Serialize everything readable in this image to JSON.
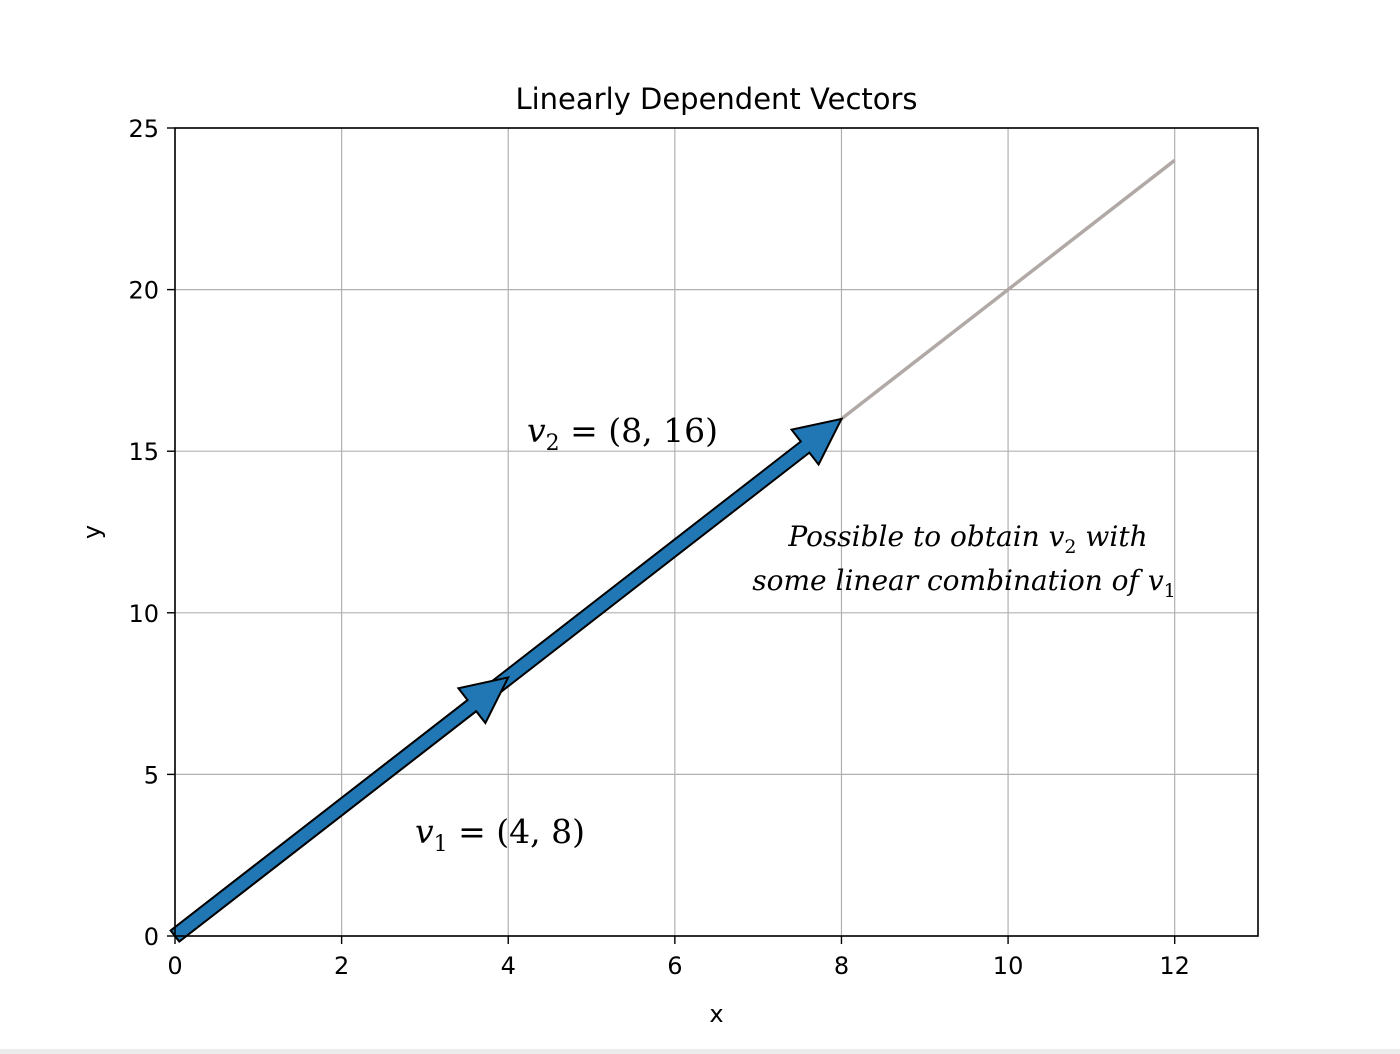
{
  "chart_data": {
    "type": "line",
    "title": "Linearly Dependent Vectors",
    "xlabel": "x",
    "ylabel": "y",
    "xlim": [
      0,
      13
    ],
    "ylim": [
      0,
      25
    ],
    "xticks": [
      0,
      2,
      4,
      6,
      8,
      10,
      12
    ],
    "yticks": [
      0,
      5,
      10,
      15,
      20,
      25
    ],
    "grid": true,
    "colors": {
      "vector": "#2077b4",
      "span_line": "#b0a9a6",
      "grid": "#b0b0b0"
    },
    "span_line": {
      "x": [
        0,
        12
      ],
      "y": [
        0,
        24
      ]
    },
    "vectors": [
      {
        "id": "v1",
        "name": "v",
        "sub": "1",
        "x": 4,
        "y": 8,
        "label_value": "(4, 8)"
      },
      {
        "id": "v2",
        "name": "v",
        "sub": "2",
        "x": 8,
        "y": 16,
        "label_value": "(8, 16)"
      }
    ],
    "annotation": {
      "line1_text": "Possible to obtain ",
      "line1_var": "v",
      "line1_sub": "2",
      "line1_tail": " with",
      "line2_text": "some linear combination of ",
      "line2_var": "v",
      "line2_sub": "1"
    }
  }
}
